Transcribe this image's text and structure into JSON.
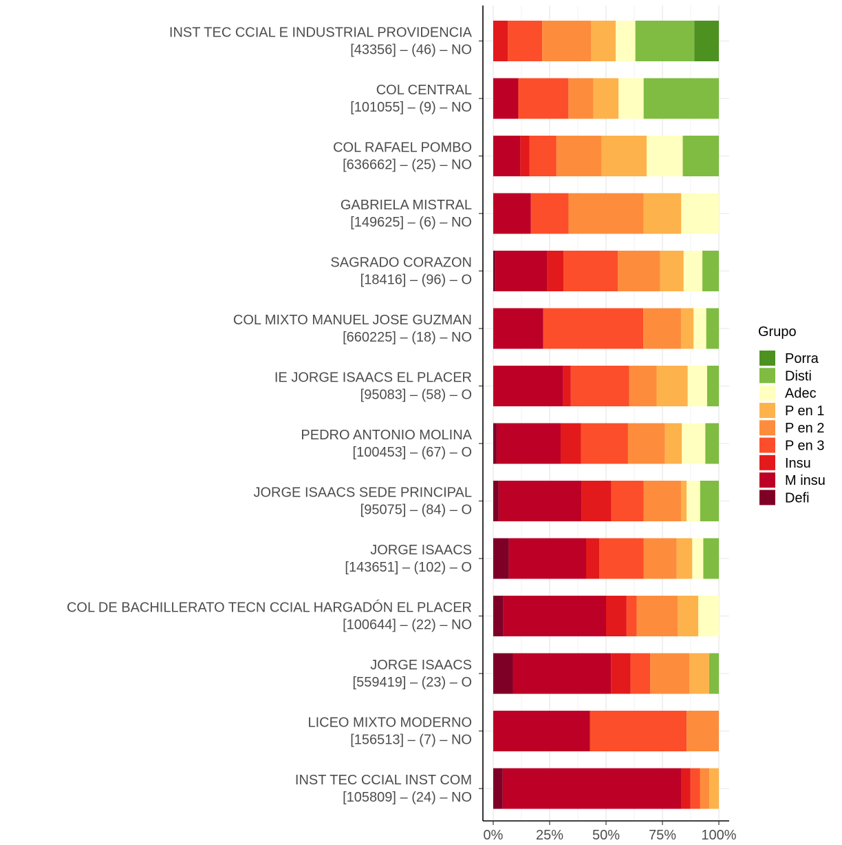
{
  "chart_data": {
    "type": "bar",
    "orientation": "horizontal",
    "stacked": "percent",
    "title": "",
    "xlabel": "",
    "ylabel": "",
    "xlim": [
      0,
      100
    ],
    "x_ticks": [
      "0%",
      "25%",
      "50%",
      "75%",
      "100%"
    ],
    "grid": true,
    "legend": {
      "title": "Grupo",
      "placement": "right",
      "entries": [
        "Porra",
        "Disti",
        "Adec",
        "P en 1",
        "P en 2",
        "P en 3",
        "Insu",
        "M insu",
        "Defi"
      ]
    },
    "series_order": [
      "Defi",
      "M insu",
      "Insu",
      "P en 3",
      "P en 2",
      "P en 1",
      "Adec",
      "Disti",
      "Porra"
    ],
    "colors": {
      "Defi": "#7f0026",
      "M insu": "#bd0026",
      "Insu": "#e31a1c",
      "P en 3": "#fc4e2a",
      "P en 2": "#fd8d3c",
      "P en 1": "#feb24c",
      "Adec": "#ffffbf",
      "Disti": "#7fbc41",
      "Porra": "#4d9221"
    },
    "categories": [
      {
        "name": "INST TEC CCIAL E INDUSTRIAL PROVIDENCIA",
        "sub": "[43356] – (46) – NO",
        "values": [
          0,
          0,
          6.5,
          15.2,
          21.7,
          10.9,
          8.7,
          26.1,
          10.9
        ]
      },
      {
        "name": "COL CENTRAL",
        "sub": "[101055] – (9) – NO",
        "values": [
          0,
          11.1,
          0,
          22.2,
          11.1,
          11.1,
          11.1,
          33.3,
          0
        ]
      },
      {
        "name": "COL RAFAEL POMBO",
        "sub": "[636662] – (25) – NO",
        "values": [
          0,
          12,
          4,
          12,
          20,
          20,
          16,
          16,
          0
        ]
      },
      {
        "name": "GABRIELA MISTRAL",
        "sub": "[149625] – (6) – NO",
        "values": [
          0,
          16.7,
          0,
          16.7,
          33.3,
          16.7,
          16.7,
          0,
          0
        ]
      },
      {
        "name": "SAGRADO CORAZON",
        "sub": "[18416] – (96) – O",
        "values": [
          1.0,
          22.9,
          7.3,
          24.0,
          18.8,
          10.4,
          8.3,
          7.3,
          0
        ]
      },
      {
        "name": "COL MIXTO MANUEL JOSE GUZMAN",
        "sub": "[660225] – (18) – NO",
        "values": [
          0,
          22.2,
          0,
          44.4,
          16.7,
          5.6,
          5.6,
          5.6,
          0
        ]
      },
      {
        "name": "IE JORGE ISAACS EL PLACER",
        "sub": "[95083] – (58) – O",
        "values": [
          0,
          31.0,
          3.4,
          25.9,
          12.1,
          13.8,
          8.6,
          5.2,
          0
        ]
      },
      {
        "name": "PEDRO ANTONIO MOLINA",
        "sub": "[100453] – (67) – O",
        "values": [
          1.5,
          28.4,
          9.0,
          20.9,
          16.4,
          7.5,
          10.4,
          6.0,
          0
        ]
      },
      {
        "name": "JORGE ISAACS SEDE PRINCIPAL",
        "sub": "[95075] – (84) – O",
        "values": [
          2.4,
          36.9,
          13.1,
          14.3,
          16.7,
          2.4,
          6.0,
          8.3,
          0
        ]
      },
      {
        "name": "JORGE ISAACS",
        "sub": "[143651] – (102) – O",
        "values": [
          6.9,
          34.3,
          5.9,
          19.6,
          14.7,
          6.9,
          4.9,
          6.9,
          0
        ]
      },
      {
        "name": "COL DE BACHILLERATO TECN CCIAL HARGADÓN EL PLACER",
        "sub": "[100644] – (22) – NO",
        "values": [
          4.5,
          45.5,
          9.1,
          4.5,
          18.2,
          9.1,
          9.1,
          0,
          0
        ]
      },
      {
        "name": "JORGE ISAACS",
        "sub": "[559419] – (23) – O",
        "values": [
          8.7,
          43.5,
          8.7,
          8.7,
          17.4,
          8.7,
          0,
          4.3,
          0
        ]
      },
      {
        "name": "LICEO MIXTO MODERNO",
        "sub": "[156513] – (7) – NO",
        "values": [
          0,
          42.9,
          0,
          42.9,
          14.3,
          0,
          0,
          0,
          0
        ]
      },
      {
        "name": "INST TEC CCIAL INST COM",
        "sub": "[105809] – (24) – NO",
        "values": [
          4.2,
          79.2,
          4.2,
          4.2,
          4.2,
          4.2,
          0,
          0,
          0
        ]
      }
    ]
  }
}
